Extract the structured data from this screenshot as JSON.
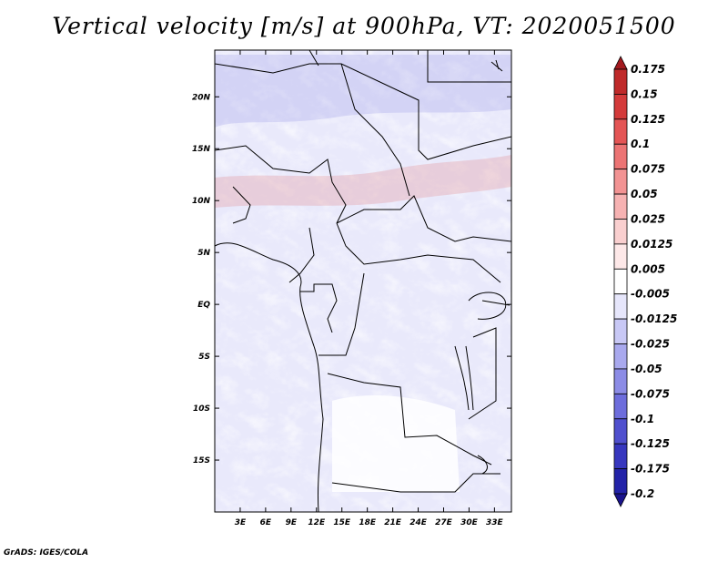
{
  "title": "Vertical velocity [m/s] at 900hPa, VT: 2020051500",
  "credit": "GrADS: IGES/COLA",
  "map": {
    "lon_range": [
      0,
      35
    ],
    "lat_range": [
      -20,
      24.5
    ],
    "lon_ticks": [
      "3E",
      "6E",
      "9E",
      "12E",
      "15E",
      "18E",
      "21E",
      "24E",
      "27E",
      "30E",
      "33E"
    ],
    "lon_tick_values": [
      3,
      6,
      9,
      12,
      15,
      18,
      21,
      24,
      27,
      30,
      33
    ],
    "lat_ticks": [
      "20N",
      "15N",
      "10N",
      "5N",
      "EQ",
      "5S",
      "10S",
      "15S"
    ],
    "lat_tick_values": [
      20,
      15,
      10,
      5,
      0,
      -5,
      -10,
      -15
    ]
  },
  "colorbar": {
    "labels": [
      "0.175",
      "0.15",
      "0.125",
      "0.1",
      "0.075",
      "0.05",
      "0.025",
      "0.0125",
      "0.005",
      "-0.005",
      "-0.0125",
      "-0.025",
      "-0.05",
      "-0.075",
      "-0.1",
      "-0.125",
      "-0.175",
      "-0.2"
    ],
    "colors": [
      "#a31a1f",
      "#bf2a2a",
      "#d43b3b",
      "#e45555",
      "#ec7474",
      "#f29393",
      "#f6b2b2",
      "#f9cfcf",
      "#fde8e8",
      "#ffffff",
      "#e6e6fb",
      "#c8c8f5",
      "#a9a9ee",
      "#8c8ce6",
      "#6d6ddc",
      "#5050ce",
      "#3737be",
      "#2323a8",
      "#1a148c"
    ]
  }
}
